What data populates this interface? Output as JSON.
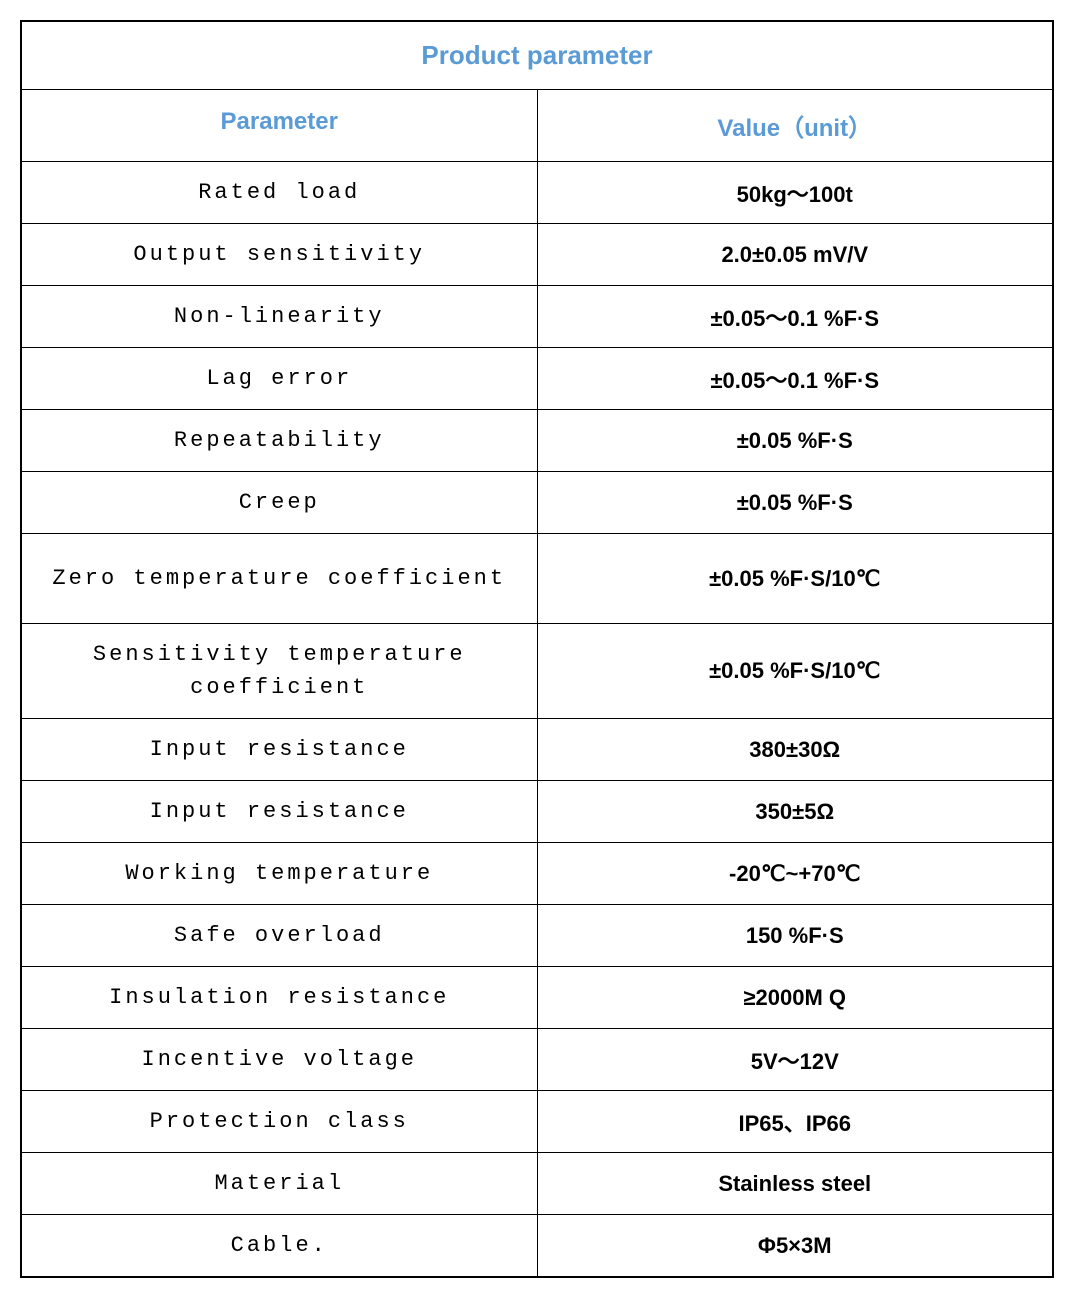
{
  "table": {
    "title": "Product parameter",
    "header": {
      "param": "Parameter",
      "value": "Value（unit）"
    },
    "rows": [
      {
        "param": "Rated load",
        "value": "50kg～100t",
        "tall": false
      },
      {
        "param": "Output sensitivity",
        "value": "2.0±0.05 mV/V",
        "tall": false
      },
      {
        "param": "Non-linearity",
        "value": "±0.05～0.1 %F·S",
        "tall": false
      },
      {
        "param": "Lag error",
        "value": "±0.05～0.1 %F·S",
        "tall": false
      },
      {
        "param": "Repeatability",
        "value": "±0.05 %F·S",
        "tall": false
      },
      {
        "param": "Creep",
        "value": "±0.05 %F·S",
        "tall": false
      },
      {
        "param": "Zero temperature coefficient",
        "value": "±0.05 %F·S/10℃",
        "tall": true
      },
      {
        "param": "Sensitivity temperature coefficient",
        "value": "±0.05 %F·S/10℃",
        "tall": true
      },
      {
        "param": "Input resistance",
        "value": "380±30Ω",
        "tall": false
      },
      {
        "param": "Input resistance",
        "value": "350±5Ω",
        "tall": false
      },
      {
        "param": "Working temperature",
        "value": "-20℃~+70℃",
        "tall": false
      },
      {
        "param": "Safe overload",
        "value": "150 %F·S",
        "tall": false
      },
      {
        "param": "Insulation resistance",
        "value": "≥2000M Q",
        "tall": false
      },
      {
        "param": "Incentive voltage",
        "value": "5V～12V",
        "tall": false
      },
      {
        "param": "Protection class",
        "value": "IP65、IP66",
        "tall": false
      },
      {
        "param": "Material",
        "value": "Stainless steel",
        "tall": false
      },
      {
        "param": "Cable.",
        "value": "Φ5×3M",
        "tall": false
      }
    ],
    "colors": {
      "header_text": "#5b9bd5",
      "border": "#000000",
      "body_text": "#000000",
      "background": "#ffffff"
    },
    "fonts": {
      "title_size": 26,
      "header_size": 24,
      "cell_size": 22,
      "param_family": "Courier New",
      "value_family": "Arial"
    }
  }
}
